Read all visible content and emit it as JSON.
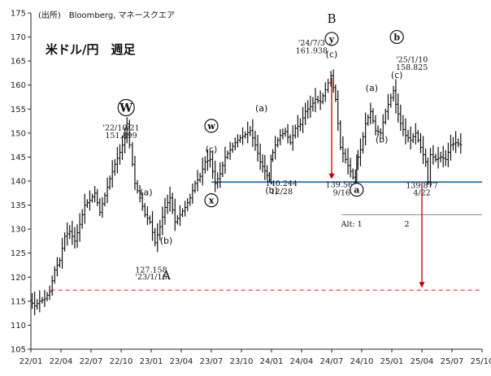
{
  "source_note": "(出所)　Bloomberg, マネースクエア",
  "chart_data": {
    "type": "line",
    "title": "米ドル/円　週足",
    "frequency": "weekly",
    "ylim": [
      105,
      175
    ],
    "yticks": [
      105,
      110,
      115,
      120,
      125,
      130,
      135,
      140,
      145,
      150,
      155,
      160,
      165,
      170,
      175
    ],
    "xlim": [
      "22/01",
      "25/10"
    ],
    "xticks": [
      "22/01",
      "22/04",
      "22/07",
      "22/10",
      "23/01",
      "23/04",
      "23/07",
      "23/10",
      "24/01",
      "24/04",
      "24/07",
      "24/10",
      "25/01",
      "25/04",
      "25/07",
      "25/10"
    ],
    "grid": false,
    "series": [
      {
        "name": "",
        "points": [
          [
            "22/01",
            115.2
          ],
          [
            "22/01.5",
            114.0
          ],
          [
            "22/02",
            115.0
          ],
          [
            "22/02.5",
            115.5
          ],
          [
            "22/03",
            117.0
          ],
          [
            "22/03.5",
            121.5
          ],
          [
            "22/04",
            123.5
          ],
          [
            "22/04.5",
            128.5
          ],
          [
            "22/05",
            129.5
          ],
          [
            "22/05.5",
            127.5
          ],
          [
            "22/06",
            131.0
          ],
          [
            "22/06.5",
            135.0
          ],
          [
            "22/07",
            136.0
          ],
          [
            "22/07.5",
            137.5
          ],
          [
            "22/08",
            133.5
          ],
          [
            "22/08.5",
            137.0
          ],
          [
            "22/09",
            140.5
          ],
          [
            "22/09.5",
            143.5
          ],
          [
            "22/10",
            146.0
          ],
          [
            "22/10.5",
            149.0
          ],
          [
            "22/10/21",
            151.899
          ],
          [
            "22/11",
            147.5
          ],
          [
            "22/11.5",
            139.5
          ],
          [
            "22/12",
            136.5
          ],
          [
            "22/12.5",
            133.0
          ],
          [
            "23/01",
            131.5
          ],
          [
            "23/01/16",
            127.158
          ],
          [
            "23/02",
            130.5
          ],
          [
            "23/02.5",
            134.5
          ],
          [
            "23/03",
            136.5
          ],
          [
            "23/03.5",
            131.5
          ],
          [
            "23/04",
            133.0
          ],
          [
            "23/04.5",
            134.5
          ],
          [
            "23/05",
            136.5
          ],
          [
            "23/05.5",
            139.5
          ],
          [
            "23/06",
            141.0
          ],
          [
            "23/06.5",
            144.0
          ],
          [
            "23/07",
            144.5
          ],
          [
            "23/07.5",
            139.5
          ],
          [
            "23/08",
            141.5
          ],
          [
            "23/08.5",
            145.0
          ],
          [
            "23/09",
            146.5
          ],
          [
            "23/09.5",
            148.0
          ],
          [
            "23/10",
            149.0
          ],
          [
            "23/10.5",
            149.7
          ],
          [
            "23/11",
            150.5
          ],
          [
            "23/11.5",
            147.5
          ],
          [
            "23/12",
            144.0
          ],
          [
            "23/12/28",
            140.244
          ],
          [
            "24/01",
            144.5
          ],
          [
            "24/01.5",
            147.5
          ],
          [
            "24/02",
            149.5
          ],
          [
            "24/02.5",
            150.3
          ],
          [
            "24/03",
            148.0
          ],
          [
            "24/03.5",
            151.0
          ],
          [
            "24/04",
            151.8
          ],
          [
            "24/04.5",
            154.5
          ],
          [
            "24/05",
            155.5
          ],
          [
            "24/05.5",
            157.0
          ],
          [
            "24/06",
            156.5
          ],
          [
            "24/06.5",
            159.0
          ],
          [
            "24/07/3",
            161.938
          ],
          [
            "24/07.5",
            157.0
          ],
          [
            "24/08",
            147.0
          ],
          [
            "24/08.5",
            144.5
          ],
          [
            "24/09/16",
            139.565
          ],
          [
            "24/09.5",
            143.5
          ],
          [
            "24/10",
            146.5
          ],
          [
            "24/10.5",
            152.0
          ],
          [
            "24/11",
            154.5
          ],
          [
            "24/11.5",
            150.5
          ],
          [
            "24/12",
            150.0
          ],
          [
            "24/12.5",
            154.5
          ],
          [
            "25/01/10",
            158.825
          ],
          [
            "25/01.5",
            156.0
          ],
          [
            "25/02",
            152.0
          ],
          [
            "25/02.5",
            149.5
          ],
          [
            "25/03",
            148.5
          ],
          [
            "25/03.5",
            150.0
          ],
          [
            "25/04/22",
            139.877
          ],
          [
            "25/04.5",
            144.0
          ],
          [
            "25/05",
            145.5
          ],
          [
            "25/05.5",
            144.5
          ],
          [
            "25/06",
            145.0
          ],
          [
            "25/06.5",
            144.5
          ],
          [
            "25/07",
            147.5
          ],
          [
            "25/07.5",
            148.0
          ],
          [
            "25/08",
            147.5
          ]
        ]
      }
    ],
    "reference_lines": [
      {
        "y": 139.8,
        "color": "#2E75B6",
        "style": "solid",
        "from": "23/07",
        "to": "25/10"
      },
      {
        "y": 117.3,
        "color": "#E0474C",
        "style": "dashed",
        "from": "22/03",
        "to": "25/10"
      },
      {
        "y": 133.0,
        "color": "#888888",
        "style": "solid",
        "from": "24/08",
        "to": "25/10"
      }
    ],
    "arrows": [
      {
        "x": "24/07",
        "from_y": 161.5,
        "to_y": 140.4,
        "color": "#C00000"
      },
      {
        "x": "25/04",
        "from_y": 139.8,
        "to_y": 117.8,
        "color": "#C00000"
      }
    ],
    "annotations": [
      {
        "text": "W",
        "circled": true,
        "big": true,
        "x": "22/10.5",
        "y": 155.3
      },
      {
        "text": "'22/10/21",
        "x": "22/10",
        "y": 150.6
      },
      {
        "text": "151.899",
        "x": "22/10",
        "y": 149.0
      },
      {
        "text": "(a)",
        "x": "22/12.5",
        "y": 137.0
      },
      {
        "text": "(b)",
        "x": "23/02.5",
        "y": 127.0
      },
      {
        "text": "127.158",
        "x": "23/01",
        "y": 121.0
      },
      {
        "text": "'23/1/16",
        "x": "23/01",
        "y": 119.5
      },
      {
        "text": "A",
        "big": true,
        "x": "23/02.5",
        "y": 119.5
      },
      {
        "text": "w",
        "circled": true,
        "x": "23/07",
        "y": 151.5
      },
      {
        "text": "(c)",
        "x": "23/07",
        "y": 146.0
      },
      {
        "text": "x",
        "circled": true,
        "x": "23/07",
        "y": 136.0
      },
      {
        "text": "(a)",
        "x": "23/12",
        "y": 154.5
      },
      {
        "text": "(b)",
        "x": "24/01",
        "y": 137.5
      },
      {
        "text": "140.244",
        "x": "24/02",
        "y": 139.0
      },
      {
        "text": "12/28",
        "x": "24/02",
        "y": 137.3
      },
      {
        "text": "B",
        "big": true,
        "x": "24/07",
        "y": 173.0
      },
      {
        "text": "y",
        "circled": true,
        "x": "24/07",
        "y": 169.6
      },
      {
        "text": "'24/7/3",
        "x": "24/05",
        "y": 168.2
      },
      {
        "text": "161.938",
        "x": "24/05",
        "y": 166.6
      },
      {
        "text": "(c)",
        "x": "24/07",
        "y": 165.8
      },
      {
        "text": "139.565",
        "x": "24/08",
        "y": 138.7,
        "color": "#E8343A"
      },
      {
        "text": "9/16",
        "x": "24/08",
        "y": 137.0,
        "color": "#E8343A"
      },
      {
        "text": "a",
        "circled": true,
        "x": "24/09.5",
        "y": 138.2
      },
      {
        "text": "(a)",
        "x": "24/11",
        "y": 158.8
      },
      {
        "text": "(b)",
        "x": "24/12",
        "y": 148.0
      },
      {
        "text": "b",
        "circled": true,
        "x": "25/01.5",
        "y": 170.0
      },
      {
        "text": "(c)",
        "x": "25/01.5",
        "y": 161.5
      },
      {
        "text": "'25/1/10",
        "x": "25/03",
        "y": 164.8
      },
      {
        "text": "158.825",
        "x": "25/03",
        "y": 163.2
      },
      {
        "text": "139.877",
        "x": "25/04",
        "y": 138.6,
        "color": "#2E75B6"
      },
      {
        "text": "4/22",
        "x": "25/04",
        "y": 137.0,
        "color": "#2E75B6"
      },
      {
        "text": "Alt: 1",
        "x": "24/09",
        "y": 130.5
      },
      {
        "text": "2",
        "x": "25/02.5",
        "y": 130.5
      }
    ]
  }
}
